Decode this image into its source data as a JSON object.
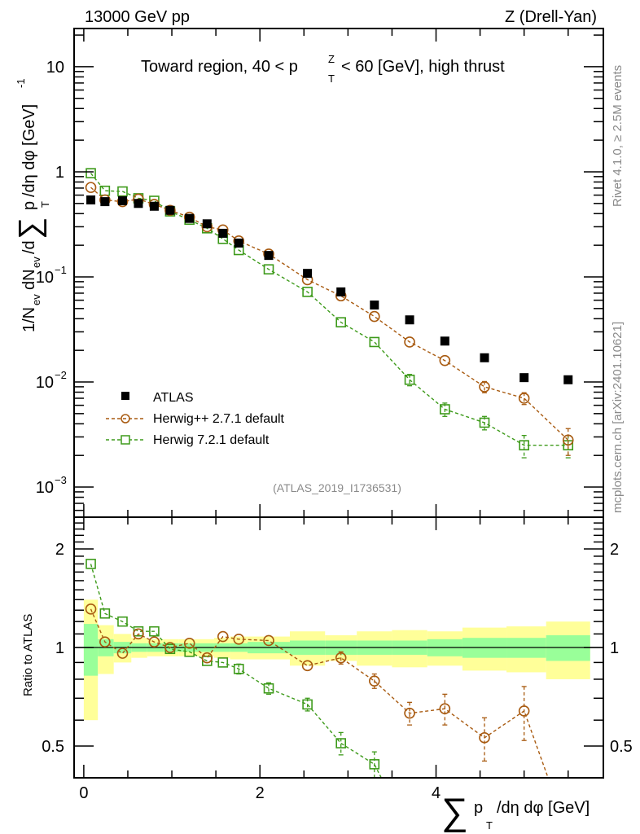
{
  "chart_data": [
    {
      "type": "scatter",
      "panel": "main",
      "title": "Toward region, 40 < p_T^Z < 60 [GeV], high thrust",
      "header_left": "13000 GeV pp",
      "header_right": "Z (Drell-Yan)",
      "xlabel": "∑ p_T /dη dφ [GeV]",
      "ylabel": "1/N_ev dN_ev/d∑ p_T /dη dφ  [GeV]^-1",
      "yscale": "log",
      "xlim": [
        -0.11,
        5.9
      ],
      "ylim": [
        0.000517,
        23.1
      ],
      "yticks": [
        {
          "value": 10,
          "label": "10"
        },
        {
          "value": 1,
          "label": "1"
        },
        {
          "value": 0.1,
          "label": "10",
          "exp": "−1"
        },
        {
          "value": 0.01,
          "label": "10",
          "exp": "−2"
        },
        {
          "value": 0.001,
          "label": "10",
          "exp": "−3"
        }
      ],
      "xticks": [
        0,
        2,
        4
      ],
      "legend_position": "lower-left",
      "analysis_label": "(ATLAS_2019_I1736531)",
      "side_label_top": "Rivet 4.1.0, ≥ 2.5M events",
      "side_label_bottom": "mcplots.cern.ch [arXiv:2401.10621]",
      "x": [
        0.08,
        0.24,
        0.44,
        0.62,
        0.8,
        0.98,
        1.2,
        1.4,
        1.58,
        1.76,
        2.1,
        2.54,
        2.92,
        3.3,
        3.7,
        4.1,
        4.55,
        5.0,
        5.5
      ],
      "series": [
        {
          "name": "ATLAS",
          "marker": "filled-square",
          "color": "#000000",
          "values": [
            0.54,
            0.52,
            0.53,
            0.5,
            0.47,
            0.43,
            0.36,
            0.32,
            0.26,
            0.21,
            0.16,
            0.108,
            0.072,
            0.054,
            0.039,
            0.0245,
            0.017,
            0.011,
            0.0105
          ]
        },
        {
          "name": "Herwig++ 2.7.1 default",
          "marker": "open-circle",
          "color": "#a85a10",
          "line": "dashed",
          "values": [
            0.71,
            0.54,
            0.52,
            0.55,
            0.49,
            0.43,
            0.37,
            0.3,
            0.28,
            0.22,
            0.165,
            0.094,
            0.066,
            0.042,
            0.024,
            0.016,
            0.009,
            0.007,
            0.0028
          ],
          "errors": [
            0.02,
            0.01,
            0.01,
            0.01,
            0.01,
            0.01,
            0.01,
            0.01,
            0.01,
            0.007,
            0.005,
            0.004,
            0.003,
            0.002,
            0.0016,
            0.0013,
            0.0011,
            0.0009,
            0.0008
          ]
        },
        {
          "name": "Herwig 7.2.1 default",
          "marker": "open-square",
          "color": "#3d9a1a",
          "line": "dashed",
          "values": [
            0.97,
            0.66,
            0.65,
            0.56,
            0.53,
            0.42,
            0.35,
            0.29,
            0.23,
            0.18,
            0.118,
            0.072,
            0.037,
            0.024,
            0.0105,
            0.0055,
            0.0041,
            0.0025,
            0.0025
          ],
          "errors": [
            0.02,
            0.01,
            0.01,
            0.01,
            0.01,
            0.01,
            0.01,
            0.01,
            0.01,
            0.007,
            0.005,
            0.004,
            0.002,
            0.0015,
            0.0013,
            0.0008,
            0.0006,
            0.0006,
            0.0006
          ]
        }
      ]
    },
    {
      "type": "scatter",
      "panel": "ratio",
      "ylabel": "Ratio to ATLAS",
      "yscale": "log",
      "ylim": [
        0.4,
        2.5
      ],
      "yticks": [
        {
          "value": 2,
          "label": "2"
        },
        {
          "value": 1,
          "label": "1"
        },
        {
          "value": 0.5,
          "label": "0.5"
        }
      ],
      "xticks": [
        {
          "value": 0,
          "label": "0"
        },
        {
          "value": 2,
          "label": "2"
        },
        {
          "value": 4,
          "label": "4"
        }
      ],
      "bin_edges": [
        0.0,
        0.16,
        0.34,
        0.54,
        0.72,
        0.9,
        1.08,
        1.3,
        1.48,
        1.66,
        1.86,
        2.34,
        2.74,
        3.1,
        3.5,
        3.9,
        4.3,
        4.8,
        5.25,
        5.75
      ],
      "band_inner": [
        0.18,
        0.06,
        0.04,
        0.03,
        0.03,
        0.03,
        0.03,
        0.03,
        0.03,
        0.03,
        0.04,
        0.05,
        0.05,
        0.05,
        0.05,
        0.06,
        0.07,
        0.07,
        0.09
      ],
      "band_outer": [
        0.4,
        0.17,
        0.1,
        0.07,
        0.06,
        0.06,
        0.06,
        0.06,
        0.07,
        0.08,
        0.08,
        0.12,
        0.09,
        0.12,
        0.13,
        0.12,
        0.15,
        0.16,
        0.2
      ],
      "band_colors": {
        "inner": "#99ff99",
        "outer": "#ffff99"
      },
      "series": [
        {
          "name": "Herwig++ 2.7.1 default",
          "color": "#a85a10",
          "values": [
            1.31,
            1.04,
            0.96,
            1.1,
            1.04,
            1.0,
            1.03,
            0.93,
            1.08,
            1.06,
            1.05,
            0.88,
            0.93,
            0.79,
            0.63,
            0.65,
            0.53,
            0.64,
            0.27
          ],
          "errors": [
            0.03,
            0.02,
            0.02,
            0.02,
            0.02,
            0.02,
            0.02,
            0.03,
            0.03,
            0.03,
            0.03,
            0.03,
            0.04,
            0.04,
            0.05,
            0.07,
            0.08,
            0.12,
            0.08
          ]
        },
        {
          "name": "Herwig 7.2.1 default",
          "color": "#3d9a1a",
          "values": [
            1.8,
            1.27,
            1.2,
            1.12,
            1.12,
            0.99,
            0.97,
            0.91,
            0.9,
            0.86,
            0.75,
            0.67,
            0.51,
            0.44,
            0.27,
            0.22,
            0.24,
            0.23,
            0.24
          ],
          "errors": [
            0.02,
            0.02,
            0.02,
            0.02,
            0.02,
            0.02,
            0.02,
            0.02,
            0.03,
            0.03,
            0.03,
            0.03,
            0.04,
            0.04,
            0.05,
            0.05,
            0.05,
            0.05,
            0.05
          ]
        }
      ]
    }
  ]
}
